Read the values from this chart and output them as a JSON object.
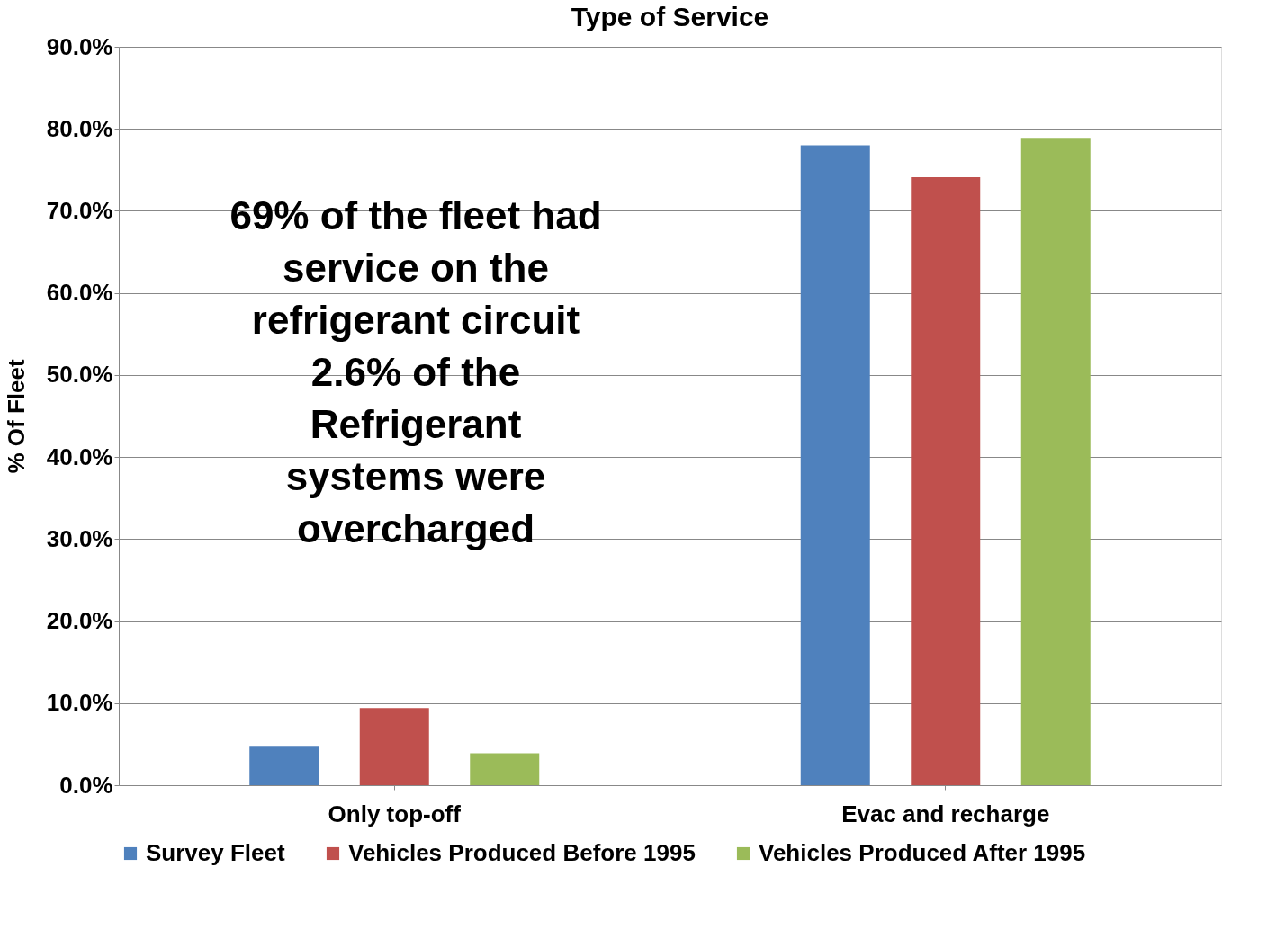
{
  "chart_data": {
    "type": "bar",
    "title": "Type of Service",
    "ylabel": "% Of Fleet",
    "categories": [
      "Only top-off",
      "Evac and recharge"
    ],
    "series": [
      {
        "name": "Survey Fleet",
        "color": "#4f81bd",
        "values": [
          4.8,
          78.0
        ]
      },
      {
        "name": "Vehicles Produced Before 1995",
        "color": "#c0504d",
        "values": [
          9.4,
          74.1
        ]
      },
      {
        "name": "Vehicles Produced After 1995",
        "color": "#9bbb59",
        "values": [
          3.9,
          78.9
        ]
      }
    ],
    "ylim": [
      0,
      90
    ],
    "yticks": [
      {
        "value": 0,
        "label": "0.0%"
      },
      {
        "value": 10,
        "label": "10.0%"
      },
      {
        "value": 20,
        "label": "20.0%"
      },
      {
        "value": 30,
        "label": "30.0%"
      },
      {
        "value": 40,
        "label": "40.0%"
      },
      {
        "value": 50,
        "label": "50.0%"
      },
      {
        "value": 60,
        "label": "60.0%"
      },
      {
        "value": 70,
        "label": "70.0%"
      },
      {
        "value": 80,
        "label": "80.0%"
      },
      {
        "value": 90,
        "label": "90.0%"
      }
    ],
    "grid": "y",
    "legend": "bottom",
    "annotations": [
      "69% of the fleet had\nservice on the\nrefrigerant circuit\n2.6% of the\nRefrigerant\nsystems were\novercharged"
    ]
  }
}
